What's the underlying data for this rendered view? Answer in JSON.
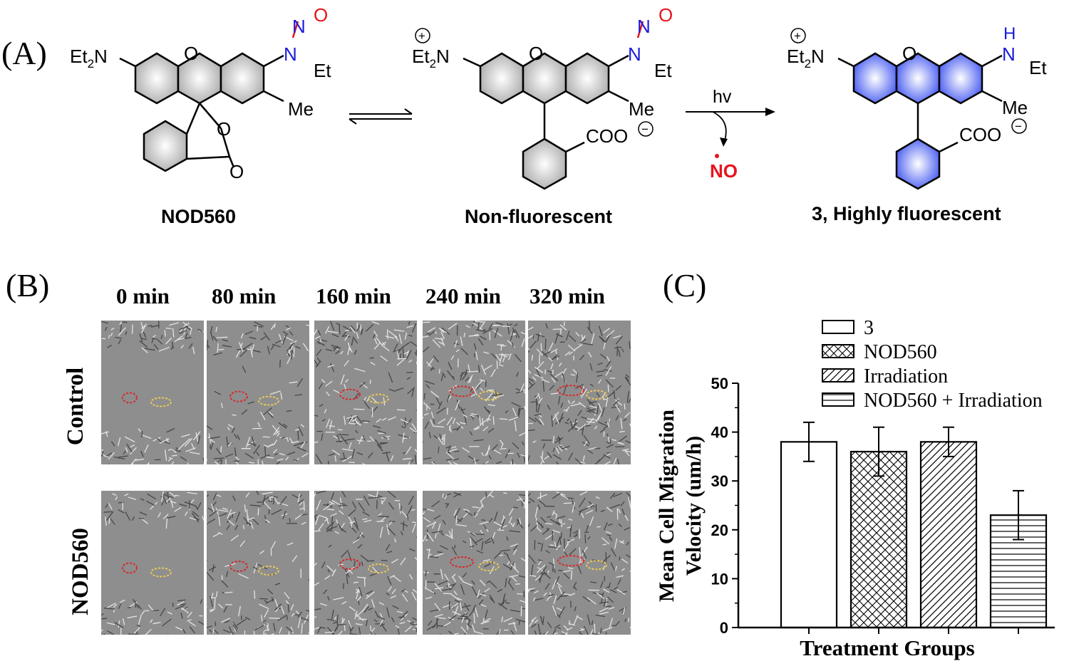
{
  "panels": {
    "a": "(A)",
    "b": "(B)",
    "c": "(C)"
  },
  "scheme": {
    "compounds": [
      {
        "label": "NOD560",
        "amine_left": "Et",
        "amine_sub": "2",
        "amine_n": "N",
        "nitroso_n": "N",
        "nitroso_o": "O",
        "et": "Et",
        "me": "Me",
        "ring_o": "O",
        "lactone_o": "O",
        "carbonyl_o": "O"
      },
      {
        "label": "Non-fluorescent",
        "amine_left": "Et",
        "amine_sub": "2",
        "amine_n": "N",
        "charge_plus": "+",
        "nitroso_n": "N",
        "nitroso_o": "O",
        "et": "Et",
        "me": "Me",
        "ring_o": "O",
        "carboxylate": "COO",
        "charge_minus": "−"
      },
      {
        "label": "3, Highly fluorescent",
        "amine_left": "Et",
        "amine_sub": "2",
        "amine_n": "N",
        "charge_plus": "+",
        "amine_h": "H",
        "amine_n2": "N",
        "et": "Et",
        "me": "Me",
        "ring_o": "O",
        "carboxylate": "COO",
        "charge_minus": "−"
      }
    ],
    "reaction": {
      "light": "hv",
      "released": "NO"
    },
    "colors": {
      "nitroso": "#e8141c",
      "amine": "#1a1adc",
      "ring_gray": "#b4b4b4",
      "ring_blue": "#5a6cf2"
    }
  },
  "migration": {
    "timepoints": [
      "0 min",
      "80 min",
      "160 min",
      "240 min",
      "320 min"
    ],
    "rows": [
      "Control",
      "NOD560"
    ],
    "gap_closure": [
      [
        0.0,
        0.15,
        0.4,
        0.75,
        0.85
      ],
      [
        0.0,
        0.2,
        0.45,
        0.7,
        0.85
      ]
    ]
  },
  "chart_data": {
    "type": "bar",
    "categories": [
      "3",
      "NOD560",
      "Irradiation",
      "NOD560 + Irradiation"
    ],
    "values": [
      38,
      36,
      38,
      23
    ],
    "errors": [
      4,
      5,
      3,
      5
    ],
    "patterns": [
      "none",
      "crosshatch",
      "diagonal",
      "horizontal"
    ],
    "xlabel": "Treatment Groups",
    "ylabel_line1": "Mean Cell Migration",
    "ylabel_line2": "Velocity (um/h)",
    "ylim": [
      0,
      50
    ],
    "yticks": [
      "0",
      "10",
      "20",
      "30",
      "40",
      "50"
    ],
    "legend_position": "top-right",
    "grid": false
  }
}
